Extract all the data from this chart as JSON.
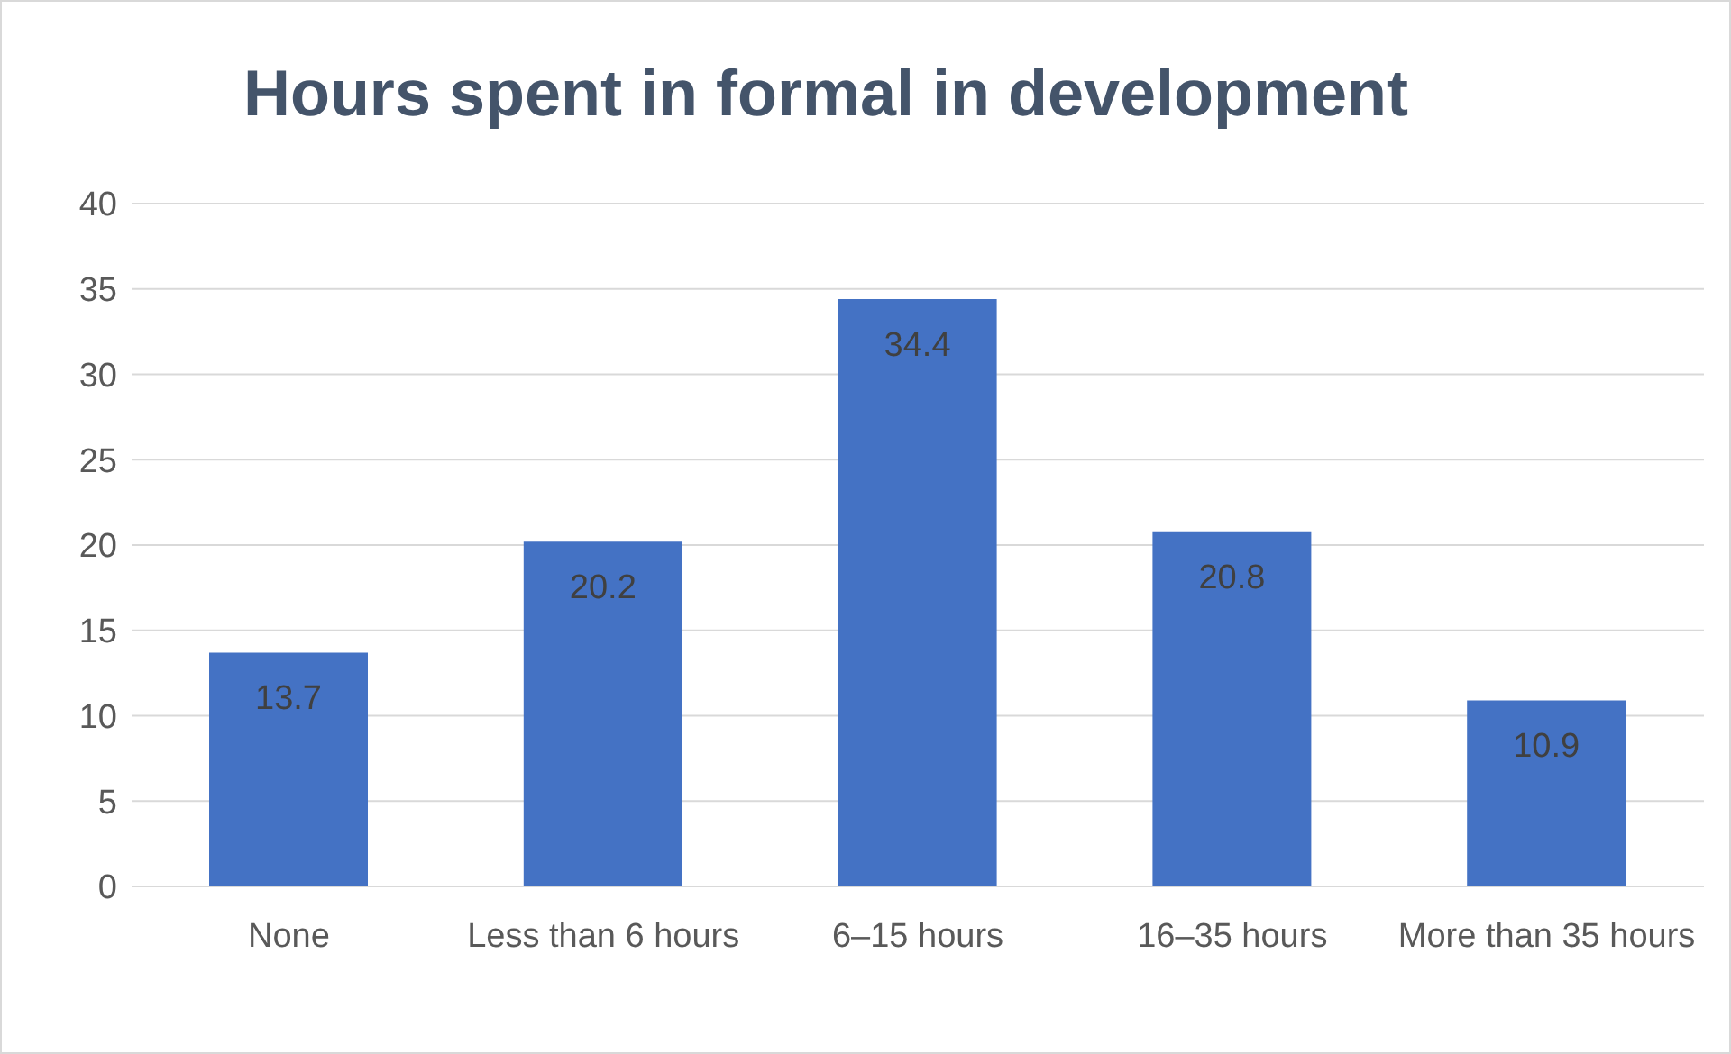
{
  "chart_data": {
    "type": "bar",
    "title": "Hours spent in formal in development",
    "categories": [
      "None",
      "Less than 6 hours",
      "6–15 hours",
      "16–35 hours",
      "More than 35 hours"
    ],
    "values": [
      13.7,
      20.2,
      34.4,
      20.8,
      10.9
    ],
    "color": "#4472c4",
    "ylim": [
      0,
      40
    ],
    "yticks": [
      0,
      5,
      10,
      15,
      20,
      25,
      30,
      35,
      40
    ],
    "grid": "y",
    "data_labels": true
  }
}
